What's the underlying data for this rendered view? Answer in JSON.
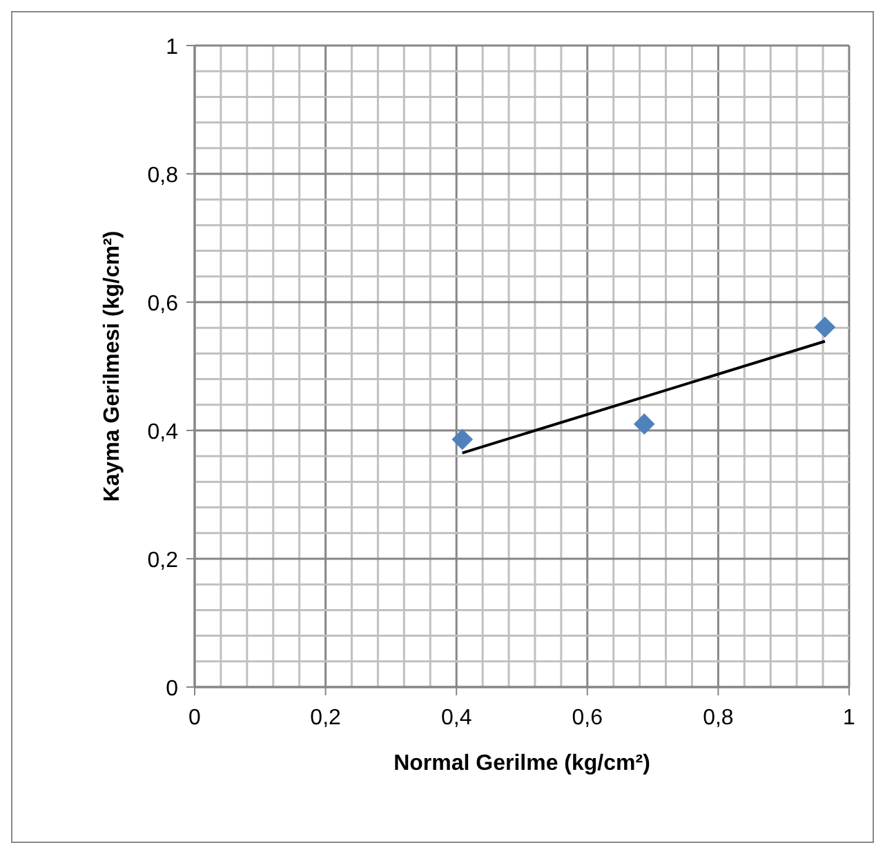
{
  "chart_data": {
    "type": "scatter",
    "xlabel": "Normal Gerilme (kg/cm²)",
    "ylabel": "Kayma Gerilmesi (kg/cm²)",
    "xlim": [
      0,
      1
    ],
    "ylim": [
      0,
      1
    ],
    "xticks": [
      {
        "value": 0,
        "label": "0"
      },
      {
        "value": 0.04,
        "label": null
      },
      {
        "value": 0.08,
        "label": null
      },
      {
        "value": 0.12,
        "label": null
      },
      {
        "value": 0.16,
        "label": null
      },
      {
        "value": 0.2,
        "label": "0,2"
      },
      {
        "value": 0.24,
        "label": null
      },
      {
        "value": 0.28,
        "label": null
      },
      {
        "value": 0.32,
        "label": null
      },
      {
        "value": 0.36,
        "label": null
      },
      {
        "value": 0.4,
        "label": "0,4"
      },
      {
        "value": 0.44,
        "label": null
      },
      {
        "value": 0.48,
        "label": null
      },
      {
        "value": 0.52,
        "label": null
      },
      {
        "value": 0.56,
        "label": null
      },
      {
        "value": 0.6,
        "label": "0,6"
      },
      {
        "value": 0.64,
        "label": null
      },
      {
        "value": 0.68,
        "label": null
      },
      {
        "value": 0.72,
        "label": null
      },
      {
        "value": 0.76,
        "label": null
      },
      {
        "value": 0.8,
        "label": "0,8"
      },
      {
        "value": 0.84,
        "label": null
      },
      {
        "value": 0.88,
        "label": null
      },
      {
        "value": 0.92,
        "label": null
      },
      {
        "value": 0.96,
        "label": null
      },
      {
        "value": 1,
        "label": "1"
      }
    ],
    "yticks": [
      {
        "value": 0,
        "label": "0"
      },
      {
        "value": 0.04,
        "label": null
      },
      {
        "value": 0.08,
        "label": null
      },
      {
        "value": 0.12,
        "label": null
      },
      {
        "value": 0.16,
        "label": null
      },
      {
        "value": 0.2,
        "label": "0,2"
      },
      {
        "value": 0.24,
        "label": null
      },
      {
        "value": 0.28,
        "label": null
      },
      {
        "value": 0.32,
        "label": null
      },
      {
        "value": 0.36,
        "label": null
      },
      {
        "value": 0.4,
        "label": "0,4"
      },
      {
        "value": 0.44,
        "label": null
      },
      {
        "value": 0.48,
        "label": null
      },
      {
        "value": 0.52,
        "label": null
      },
      {
        "value": 0.56,
        "label": null
      },
      {
        "value": 0.6,
        "label": "0,6"
      },
      {
        "value": 0.64,
        "label": null
      },
      {
        "value": 0.68,
        "label": null
      },
      {
        "value": 0.72,
        "label": null
      },
      {
        "value": 0.76,
        "label": null
      },
      {
        "value": 0.8,
        "label": "0,8"
      },
      {
        "value": 0.84,
        "label": null
      },
      {
        "value": 0.88,
        "label": null
      },
      {
        "value": 0.92,
        "label": null
      },
      {
        "value": 0.96,
        "label": null
      },
      {
        "value": 1,
        "label": "1"
      }
    ],
    "grid": true,
    "marker": "diamond",
    "series": [
      {
        "color": "#4f81bd",
        "x": [
          0.409,
          0.687,
          0.963
        ],
        "values": [
          0.386,
          0.41,
          0.561
        ]
      },
      {
        "type": "line",
        "color": "#000000",
        "marker": "none",
        "x": [
          0.409,
          0.963
        ],
        "values": [
          0.365,
          0.539
        ]
      }
    ]
  }
}
